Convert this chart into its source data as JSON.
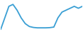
{
  "x": [
    0,
    1,
    2,
    3,
    4,
    5,
    6,
    7,
    8,
    9,
    10,
    11,
    12,
    13,
    14,
    15,
    16,
    17,
    18,
    19,
    20
  ],
  "y": [
    1,
    7,
    13,
    14,
    11,
    7,
    4,
    2.5,
    2,
    1.8,
    1.8,
    1.8,
    1.9,
    2.2,
    7,
    10,
    11,
    12,
    13,
    12,
    13
  ],
  "line_color": "#3a9fd4",
  "line_width": 1.3,
  "background_color": "#ffffff",
  "ylim": [
    0,
    16
  ],
  "xlim": [
    0,
    20
  ]
}
